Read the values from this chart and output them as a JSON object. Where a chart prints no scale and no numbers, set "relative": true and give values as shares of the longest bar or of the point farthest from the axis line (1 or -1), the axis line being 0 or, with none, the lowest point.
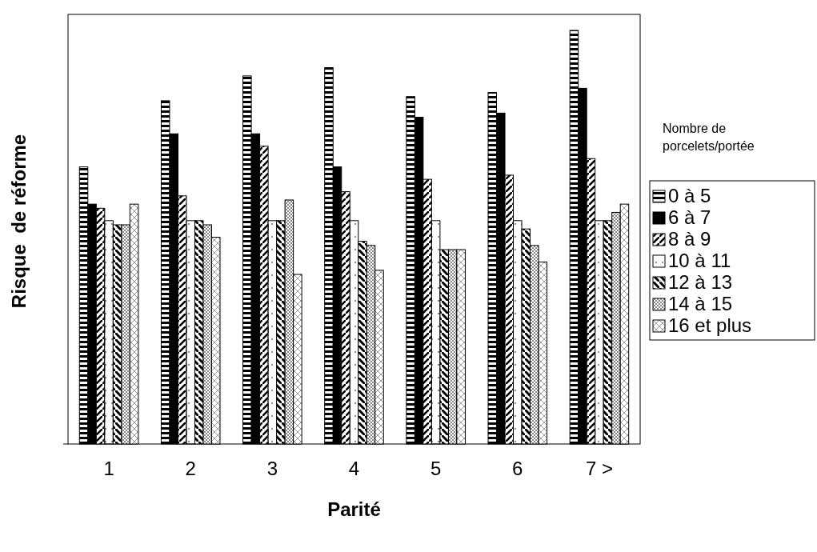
{
  "chart_data": {
    "type": "bar",
    "relative": true,
    "xlabel": "Parité",
    "ylabel": "Risque  de réforme",
    "legend_title": "Nombre de porcelets/portée",
    "legend": "right",
    "grid": false,
    "categories": [
      "1",
      "2",
      "3",
      "4",
      "5",
      "6",
      "7 >"
    ],
    "series": [
      {
        "name": "0 à 5",
        "color": "#000000",
        "values": [
          0.67,
          0.83,
          0.89,
          0.91,
          0.84,
          0.85,
          1
        ]
      },
      {
        "name": "6 à 7",
        "color": "#000000",
        "values": [
          0.58,
          0.75,
          0.75,
          0.67,
          0.79,
          0.8,
          0.86
        ]
      },
      {
        "name": "8 à 9",
        "color": "#000000",
        "values": [
          0.57,
          0.6,
          0.72,
          0.61,
          0.64,
          0.65,
          0.69
        ]
      },
      {
        "name": "10 à 11",
        "color": "#000000",
        "values": [
          0.54,
          0.54,
          0.54,
          0.54,
          0.54,
          0.54,
          0.54
        ]
      },
      {
        "name": "12 à 13",
        "color": "#000000",
        "values": [
          0.53,
          0.54,
          0.54,
          0.49,
          0.47,
          0.52,
          0.54
        ]
      },
      {
        "name": "14 à 15",
        "color": "#000000",
        "values": [
          0.53,
          0.53,
          0.59,
          0.48,
          0.47,
          0.48,
          0.56
        ]
      },
      {
        "name": "16 et plus",
        "color": "#000000",
        "values": [
          0.58,
          0.5,
          0.41,
          0.42,
          0.47,
          0.44,
          0.58
        ]
      }
    ]
  }
}
